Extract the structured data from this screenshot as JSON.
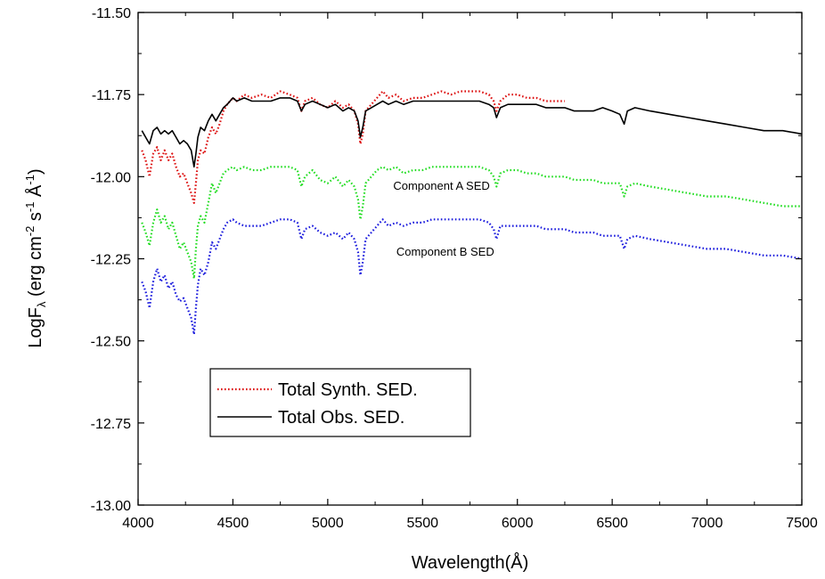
{
  "chart_data": {
    "type": "line",
    "xlabel": "Wavelength(Å)",
    "ylabel": {
      "base": "LogF",
      "sub": "λ",
      "units_open": " (erg cm",
      "exp1": "-2",
      "part2": " s",
      "exp2": "-1",
      "part3": " Å",
      "exp3": "-1",
      "units_close": ")"
    },
    "xlim": [
      4000,
      7500
    ],
    "ylim": [
      -13.0,
      -11.5
    ],
    "xticks": [
      "4000",
      "4500",
      "5000",
      "5500",
      "6000",
      "6500",
      "7000",
      "7500"
    ],
    "yticks": [
      "-13.00",
      "-12.75",
      "-12.50",
      "-12.25",
      "-12.00",
      "-11.75",
      "-11.50"
    ],
    "xtick_values": [
      4000,
      4500,
      5000,
      5500,
      6000,
      6500,
      7000,
      7500
    ],
    "ytick_values": [
      -13.0,
      -12.75,
      -12.5,
      -12.25,
      -12.0,
      -11.75,
      -11.5
    ],
    "legend": {
      "position": "lower-left",
      "entries": [
        "Total Synth. SED.",
        "Total Obs. SED."
      ]
    },
    "annotations": [
      {
        "text": "Component A SED",
        "x": 5600,
        "y": -12.04
      },
      {
        "text": "Component B SED",
        "x": 5620,
        "y": -12.24
      }
    ],
    "series": [
      {
        "name": "Total Synth. SED.",
        "color": "#dd1111",
        "style": "dotted",
        "x": [
          4020,
          4040,
          4060,
          4080,
          4100,
          4120,
          4140,
          4160,
          4180,
          4200,
          4220,
          4240,
          4260,
          4280,
          4295,
          4305,
          4315,
          4330,
          4350,
          4370,
          4390,
          4410,
          4430,
          4450,
          4470,
          4500,
          4520,
          4560,
          4600,
          4650,
          4700,
          4750,
          4800,
          4840,
          4861,
          4880,
          4920,
          4960,
          5000,
          5040,
          5080,
          5110,
          5140,
          5160,
          5172,
          5185,
          5200,
          5230,
          5260,
          5290,
          5320,
          5360,
          5400,
          5450,
          5500,
          5550,
          5600,
          5650,
          5700,
          5750,
          5800,
          5850,
          5875,
          5890,
          5910,
          5950,
          6000,
          6050,
          6100,
          6150,
          6200,
          6250
        ],
        "y": [
          -11.92,
          -11.95,
          -12.0,
          -11.93,
          -11.91,
          -11.95,
          -11.92,
          -11.95,
          -11.93,
          -11.97,
          -12.0,
          -11.99,
          -12.02,
          -12.05,
          -12.08,
          -12.02,
          -11.95,
          -11.92,
          -11.93,
          -11.88,
          -11.85,
          -11.87,
          -11.84,
          -11.8,
          -11.78,
          -11.76,
          -11.77,
          -11.75,
          -11.76,
          -11.75,
          -11.76,
          -11.74,
          -11.75,
          -11.76,
          -11.8,
          -11.77,
          -11.76,
          -11.78,
          -11.79,
          -11.77,
          -11.79,
          -11.78,
          -11.8,
          -11.84,
          -11.9,
          -11.87,
          -11.8,
          -11.78,
          -11.76,
          -11.74,
          -11.76,
          -11.75,
          -11.77,
          -11.76,
          -11.76,
          -11.75,
          -11.74,
          -11.75,
          -11.74,
          -11.74,
          -11.74,
          -11.75,
          -11.77,
          -11.8,
          -11.77,
          -11.75,
          -11.75,
          -11.76,
          -11.76,
          -11.77,
          -11.77,
          -11.77
        ]
      },
      {
        "name": "Total Obs. SED.",
        "color": "#000000",
        "style": "solid",
        "x": [
          4020,
          4040,
          4060,
          4080,
          4100,
          4120,
          4140,
          4160,
          4180,
          4200,
          4220,
          4240,
          4260,
          4280,
          4295,
          4305,
          4315,
          4330,
          4350,
          4370,
          4390,
          4410,
          4430,
          4450,
          4470,
          4500,
          4520,
          4560,
          4600,
          4650,
          4700,
          4750,
          4800,
          4840,
          4861,
          4880,
          4920,
          4960,
          5000,
          5040,
          5080,
          5110,
          5140,
          5160,
          5172,
          5185,
          5200,
          5230,
          5260,
          5290,
          5320,
          5360,
          5400,
          5450,
          5500,
          5550,
          5600,
          5650,
          5700,
          5750,
          5800,
          5850,
          5875,
          5890,
          5910,
          5950,
          6000,
          6050,
          6100,
          6150,
          6200,
          6250,
          6300,
          6350,
          6400,
          6450,
          6500,
          6540,
          6563,
          6580,
          6620,
          6700,
          6800,
          6900,
          7000,
          7100,
          7200,
          7300,
          7400,
          7500
        ],
        "y": [
          -11.86,
          -11.88,
          -11.9,
          -11.86,
          -11.85,
          -11.87,
          -11.86,
          -11.87,
          -11.86,
          -11.88,
          -11.9,
          -11.89,
          -11.9,
          -11.92,
          -11.97,
          -11.93,
          -11.88,
          -11.85,
          -11.86,
          -11.83,
          -11.81,
          -11.83,
          -11.81,
          -11.79,
          -11.78,
          -11.76,
          -11.77,
          -11.76,
          -11.77,
          -11.77,
          -11.77,
          -11.76,
          -11.76,
          -11.77,
          -11.8,
          -11.78,
          -11.77,
          -11.78,
          -11.79,
          -11.78,
          -11.8,
          -11.79,
          -11.8,
          -11.83,
          -11.88,
          -11.85,
          -11.8,
          -11.79,
          -11.78,
          -11.77,
          -11.78,
          -11.77,
          -11.78,
          -11.77,
          -11.77,
          -11.77,
          -11.77,
          -11.77,
          -11.77,
          -11.77,
          -11.77,
          -11.78,
          -11.79,
          -11.82,
          -11.79,
          -11.78,
          -11.78,
          -11.78,
          -11.78,
          -11.79,
          -11.79,
          -11.79,
          -11.8,
          -11.8,
          -11.8,
          -11.79,
          -11.8,
          -11.81,
          -11.84,
          -11.8,
          -11.79,
          -11.8,
          -11.81,
          -11.82,
          -11.83,
          -11.84,
          -11.85,
          -11.86,
          -11.86,
          -11.87
        ]
      },
      {
        "name": "Component A SED",
        "color": "#22dd22",
        "style": "dotted",
        "x": [
          4020,
          4040,
          4060,
          4080,
          4100,
          4120,
          4140,
          4160,
          4180,
          4200,
          4220,
          4240,
          4260,
          4280,
          4295,
          4305,
          4315,
          4330,
          4350,
          4370,
          4390,
          4410,
          4430,
          4450,
          4470,
          4500,
          4520,
          4560,
          4600,
          4650,
          4700,
          4750,
          4800,
          4840,
          4861,
          4880,
          4920,
          4960,
          5000,
          5040,
          5080,
          5110,
          5140,
          5160,
          5172,
          5185,
          5200,
          5230,
          5260,
          5290,
          5320,
          5360,
          5400,
          5450,
          5500,
          5550,
          5600,
          5650,
          5700,
          5750,
          5800,
          5850,
          5875,
          5890,
          5910,
          5950,
          6000,
          6050,
          6100,
          6150,
          6200,
          6250,
          6300,
          6350,
          6400,
          6450,
          6500,
          6540,
          6563,
          6580,
          6620,
          6700,
          6800,
          6900,
          7000,
          7100,
          7200,
          7300,
          7400,
          7500
        ],
        "y": [
          -12.14,
          -12.17,
          -12.21,
          -12.14,
          -12.1,
          -12.14,
          -12.12,
          -12.16,
          -12.14,
          -12.18,
          -12.22,
          -12.2,
          -12.23,
          -12.26,
          -12.31,
          -12.22,
          -12.15,
          -12.12,
          -12.14,
          -12.08,
          -12.02,
          -12.05,
          -12.02,
          -11.99,
          -11.98,
          -11.97,
          -11.98,
          -11.97,
          -11.98,
          -11.98,
          -11.97,
          -11.97,
          -11.97,
          -11.98,
          -12.03,
          -12.0,
          -11.98,
          -12.01,
          -12.02,
          -12.0,
          -12.03,
          -12.01,
          -12.03,
          -12.07,
          -12.13,
          -12.09,
          -12.02,
          -12.0,
          -11.98,
          -11.97,
          -11.98,
          -11.97,
          -11.99,
          -11.98,
          -11.98,
          -11.97,
          -11.97,
          -11.97,
          -11.97,
          -11.97,
          -11.97,
          -11.98,
          -12.0,
          -12.03,
          -11.99,
          -11.98,
          -11.98,
          -11.99,
          -11.99,
          -12.0,
          -12.0,
          -12.0,
          -12.01,
          -12.01,
          -12.01,
          -12.02,
          -12.02,
          -12.02,
          -12.06,
          -12.03,
          -12.02,
          -12.03,
          -12.04,
          -12.05,
          -12.06,
          -12.06,
          -12.07,
          -12.08,
          -12.09,
          -12.09
        ]
      },
      {
        "name": "Component B SED",
        "color": "#1a1add",
        "style": "dotted",
        "x": [
          4020,
          4040,
          4060,
          4080,
          4100,
          4120,
          4140,
          4160,
          4180,
          4200,
          4220,
          4240,
          4260,
          4280,
          4295,
          4305,
          4315,
          4330,
          4350,
          4370,
          4390,
          4410,
          4430,
          4450,
          4470,
          4500,
          4520,
          4560,
          4600,
          4650,
          4700,
          4750,
          4800,
          4840,
          4861,
          4880,
          4920,
          4960,
          5000,
          5040,
          5080,
          5110,
          5140,
          5160,
          5172,
          5185,
          5200,
          5230,
          5260,
          5290,
          5320,
          5360,
          5400,
          5450,
          5500,
          5550,
          5600,
          5650,
          5700,
          5750,
          5800,
          5850,
          5875,
          5890,
          5910,
          5950,
          6000,
          6050,
          6100,
          6150,
          6200,
          6250,
          6300,
          6350,
          6400,
          6450,
          6500,
          6540,
          6563,
          6580,
          6620,
          6700,
          6800,
          6900,
          7000,
          7100,
          7200,
          7300,
          7400,
          7500
        ],
        "y": [
          -12.32,
          -12.35,
          -12.4,
          -12.32,
          -12.28,
          -12.32,
          -12.3,
          -12.34,
          -12.32,
          -12.36,
          -12.38,
          -12.37,
          -12.4,
          -12.43,
          -12.48,
          -12.4,
          -12.33,
          -12.28,
          -12.3,
          -12.26,
          -12.2,
          -12.22,
          -12.19,
          -12.16,
          -12.14,
          -12.13,
          -12.14,
          -12.15,
          -12.15,
          -12.15,
          -12.14,
          -12.13,
          -12.13,
          -12.14,
          -12.19,
          -12.16,
          -12.15,
          -12.17,
          -12.18,
          -12.17,
          -12.19,
          -12.17,
          -12.19,
          -12.23,
          -12.3,
          -12.26,
          -12.19,
          -12.17,
          -12.15,
          -12.13,
          -12.15,
          -12.14,
          -12.15,
          -12.14,
          -12.14,
          -12.13,
          -12.13,
          -12.13,
          -12.13,
          -12.13,
          -12.13,
          -12.14,
          -12.16,
          -12.19,
          -12.15,
          -12.15,
          -12.15,
          -12.15,
          -12.15,
          -12.16,
          -12.16,
          -12.16,
          -12.17,
          -12.17,
          -12.17,
          -12.18,
          -12.18,
          -12.18,
          -12.22,
          -12.19,
          -12.18,
          -12.19,
          -12.2,
          -12.21,
          -12.22,
          -12.22,
          -12.23,
          -12.24,
          -12.24,
          -12.25
        ]
      }
    ]
  }
}
